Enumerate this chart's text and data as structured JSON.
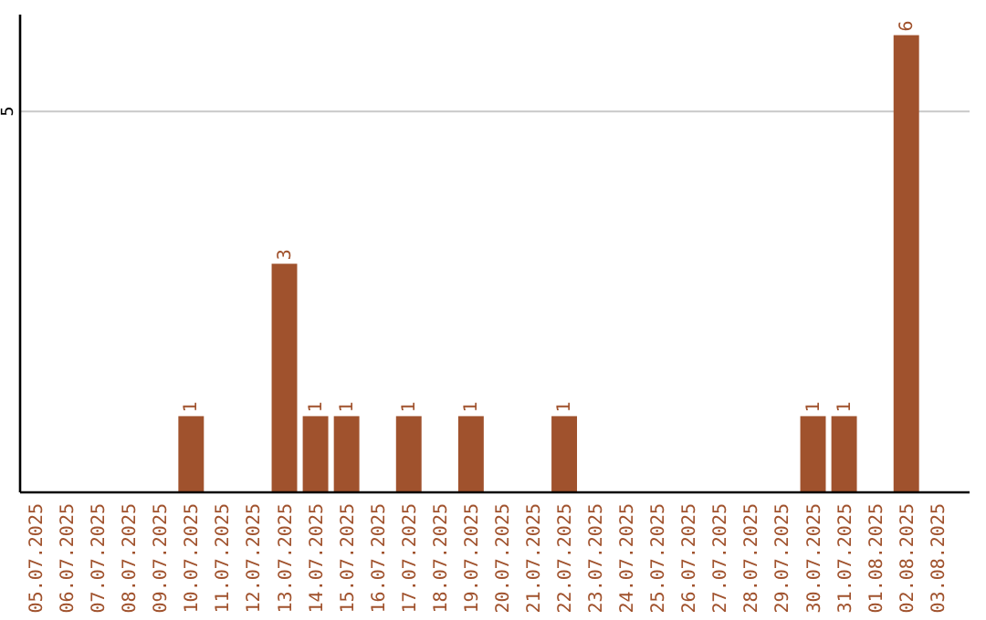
{
  "chart_data": {
    "type": "bar",
    "categories": [
      "05.07.2025",
      "06.07.2025",
      "07.07.2025",
      "08.07.2025",
      "09.07.2025",
      "10.07.2025",
      "11.07.2025",
      "12.07.2025",
      "13.07.2025",
      "14.07.2025",
      "15.07.2025",
      "16.07.2025",
      "17.07.2025",
      "18.07.2025",
      "19.07.2025",
      "20.07.2025",
      "21.07.2025",
      "22.07.2025",
      "23.07.2025",
      "24.07.2025",
      "25.07.2025",
      "26.07.2025",
      "27.07.2025",
      "28.07.2025",
      "29.07.2025",
      "30.07.2025",
      "31.07.2025",
      "01.08.2025",
      "02.08.2025",
      "03.08.2025"
    ],
    "values": [
      0,
      0,
      0,
      0,
      0,
      1,
      0,
      0,
      3,
      1,
      1,
      0,
      1,
      0,
      1,
      0,
      0,
      1,
      0,
      0,
      0,
      0,
      0,
      0,
      0,
      1,
      1,
      0,
      6,
      0
    ],
    "value_labels": [
      null,
      null,
      null,
      null,
      null,
      "1",
      null,
      null,
      "3",
      "1",
      "1",
      null,
      "1",
      null,
      "1",
      null,
      null,
      "1",
      null,
      null,
      null,
      null,
      null,
      null,
      null,
      "1",
      "1",
      null,
      "6",
      null
    ],
    "color": "#a0522d",
    "ylim": [
      0,
      6.27
    ],
    "yticks": [
      5
    ],
    "grid": "y"
  }
}
